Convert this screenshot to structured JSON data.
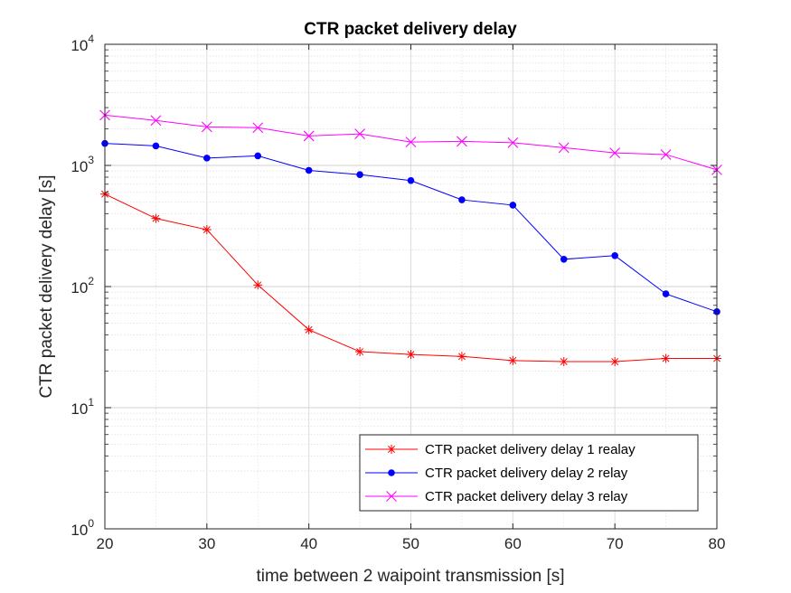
{
  "chart_data": {
    "type": "line",
    "title": "CTR packet delivery delay",
    "xlabel": "time between 2 waipoint transmission [s]",
    "ylabel": "CTR packet delivery delay [s]",
    "xlim": [
      20,
      80
    ],
    "ylim": [
      1,
      10000
    ],
    "yscale": "log",
    "grid": true,
    "minor_grid": true,
    "legend_position": "bottom-right",
    "x_ticks": [
      20,
      30,
      40,
      50,
      60,
      70,
      80
    ],
    "y_ticks": [
      {
        "value": 1,
        "base": "10",
        "exp": "0"
      },
      {
        "value": 10,
        "base": "10",
        "exp": "1"
      },
      {
        "value": 100,
        "base": "10",
        "exp": "2"
      },
      {
        "value": 1000,
        "base": "10",
        "exp": "3"
      },
      {
        "value": 10000,
        "base": "10",
        "exp": "4"
      }
    ],
    "x": [
      20,
      25,
      30,
      35,
      40,
      45,
      50,
      55,
      60,
      65,
      70,
      75,
      80
    ],
    "series": [
      {
        "name": "CTR packet delivery delay 1 realay",
        "color": "#ff0000",
        "marker": "asterisk",
        "values": [
          580,
          365,
          295,
          103,
          44,
          29,
          27.5,
          26.5,
          24.5,
          24,
          24,
          25.5,
          25.5
        ]
      },
      {
        "name": "CTR packet delivery delay 2 relay",
        "color": "#0000ff",
        "marker": "dot",
        "values": [
          1520,
          1450,
          1150,
          1200,
          910,
          840,
          750,
          520,
          470,
          168,
          180,
          87,
          62
        ]
      },
      {
        "name": "CTR packet delivery delay 3 relay",
        "color": "#ff00ff",
        "marker": "x",
        "values": [
          2600,
          2350,
          2080,
          2050,
          1750,
          1820,
          1560,
          1580,
          1540,
          1400,
          1270,
          1230,
          920
        ]
      }
    ]
  }
}
